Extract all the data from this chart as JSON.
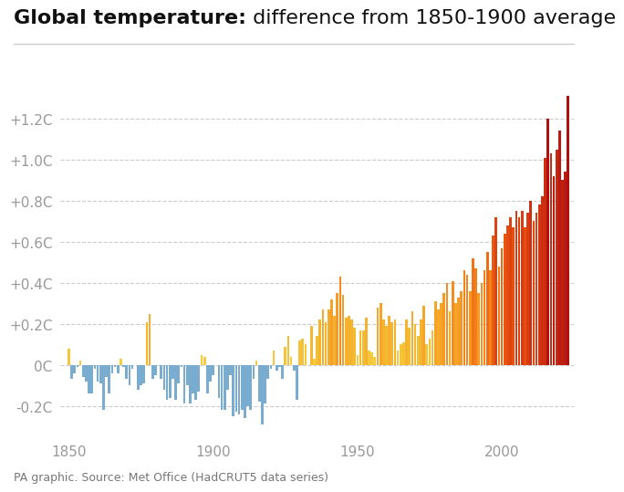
{
  "title_bold": "Global temperature:",
  "title_normal": " difference from 1850-1900 average",
  "source": "PA graphic. Source: Met Office (HadCRUT5 data series)",
  "years": [
    1850,
    1851,
    1852,
    1853,
    1854,
    1855,
    1856,
    1857,
    1858,
    1859,
    1860,
    1861,
    1862,
    1863,
    1864,
    1865,
    1866,
    1867,
    1868,
    1869,
    1870,
    1871,
    1872,
    1873,
    1874,
    1875,
    1876,
    1877,
    1878,
    1879,
    1880,
    1881,
    1882,
    1883,
    1884,
    1885,
    1886,
    1887,
    1888,
    1889,
    1890,
    1891,
    1892,
    1893,
    1894,
    1895,
    1896,
    1897,
    1898,
    1899,
    1900,
    1901,
    1902,
    1903,
    1904,
    1905,
    1906,
    1907,
    1908,
    1909,
    1910,
    1911,
    1912,
    1913,
    1914,
    1915,
    1916,
    1917,
    1918,
    1919,
    1920,
    1921,
    1922,
    1923,
    1924,
    1925,
    1926,
    1927,
    1928,
    1929,
    1930,
    1931,
    1932,
    1933,
    1934,
    1935,
    1936,
    1937,
    1938,
    1939,
    1940,
    1941,
    1942,
    1943,
    1944,
    1945,
    1946,
    1947,
    1948,
    1949,
    1950,
    1951,
    1952,
    1953,
    1954,
    1955,
    1956,
    1957,
    1958,
    1959,
    1960,
    1961,
    1962,
    1963,
    1964,
    1965,
    1966,
    1967,
    1968,
    1969,
    1970,
    1971,
    1972,
    1973,
    1974,
    1975,
    1976,
    1977,
    1978,
    1979,
    1980,
    1981,
    1982,
    1983,
    1984,
    1985,
    1986,
    1987,
    1988,
    1989,
    1990,
    1991,
    1992,
    1993,
    1994,
    1995,
    1996,
    1997,
    1998,
    1999,
    2000,
    2001,
    2002,
    2003,
    2004,
    2005,
    2006,
    2007,
    2008,
    2009,
    2010,
    2011,
    2012,
    2013,
    2014,
    2015,
    2016,
    2017,
    2018,
    2019,
    2020,
    2021,
    2022,
    2023
  ],
  "anomalies": [
    0.08,
    -0.07,
    -0.04,
    -0.01,
    0.02,
    -0.06,
    -0.08,
    -0.14,
    -0.14,
    -0.02,
    -0.08,
    -0.09,
    -0.22,
    -0.06,
    -0.14,
    -0.04,
    -0.01,
    -0.04,
    0.03,
    -0.01,
    -0.07,
    -0.1,
    -0.02,
    0.0,
    -0.12,
    -0.1,
    -0.09,
    0.21,
    0.25,
    -0.07,
    -0.05,
    0.0,
    -0.07,
    -0.12,
    -0.17,
    -0.16,
    -0.07,
    -0.17,
    -0.09,
    -0.01,
    -0.19,
    -0.1,
    -0.19,
    -0.14,
    -0.17,
    -0.13,
    0.05,
    0.04,
    -0.14,
    -0.08,
    -0.05,
    0.0,
    -0.16,
    -0.22,
    -0.22,
    -0.12,
    -0.05,
    -0.25,
    -0.23,
    -0.24,
    -0.22,
    -0.26,
    -0.2,
    -0.22,
    -0.07,
    0.02,
    -0.18,
    -0.29,
    -0.19,
    -0.07,
    -0.02,
    0.07,
    -0.03,
    -0.01,
    -0.07,
    0.09,
    0.14,
    0.04,
    -0.03,
    -0.17,
    0.12,
    0.13,
    0.1,
    0.0,
    0.19,
    0.03,
    0.14,
    0.22,
    0.27,
    0.21,
    0.27,
    0.32,
    0.24,
    0.35,
    0.43,
    0.34,
    0.23,
    0.24,
    0.22,
    0.18,
    0.05,
    0.17,
    0.17,
    0.23,
    0.07,
    0.06,
    0.04,
    0.28,
    0.3,
    0.22,
    0.19,
    0.24,
    0.21,
    0.22,
    0.07,
    0.1,
    0.11,
    0.22,
    0.18,
    0.26,
    0.2,
    0.14,
    0.22,
    0.29,
    0.1,
    0.13,
    0.17,
    0.31,
    0.27,
    0.3,
    0.35,
    0.4,
    0.26,
    0.41,
    0.3,
    0.33,
    0.36,
    0.46,
    0.44,
    0.36,
    0.52,
    0.47,
    0.35,
    0.4,
    0.46,
    0.55,
    0.46,
    0.63,
    0.72,
    0.48,
    0.57,
    0.64,
    0.68,
    0.72,
    0.67,
    0.75,
    0.72,
    0.75,
    0.67,
    0.74,
    0.8,
    0.7,
    0.74,
    0.78,
    0.82,
    1.01,
    1.2,
    1.03,
    0.92,
    1.05,
    1.14,
    0.9,
    0.94,
    1.31
  ],
  "ylim": [
    -0.35,
    1.45
  ],
  "yticks": [
    -0.2,
    0.0,
    0.2,
    0.4,
    0.6,
    0.8,
    1.0,
    1.2
  ],
  "ytick_labels": [
    "-0.2C",
    "0C",
    "+0.2C",
    "+0.4C",
    "+0.6C",
    "+0.8C",
    "+1.0C",
    "+1.2C"
  ],
  "background_color": "#ffffff",
  "grid_color": "#cccccc",
  "color_thresholds": [
    0.0,
    0.2,
    0.4,
    0.6,
    0.8,
    1.0
  ],
  "colors_positive": [
    "#f5d040",
    "#f5b830",
    "#f59020",
    "#f06010",
    "#d03010",
    "#b01010"
  ],
  "color_negative": "#7aaccf",
  "title_fontsize": 16,
  "axis_label_fontsize": 11,
  "source_fontsize": 9,
  "title_color": "#111111",
  "tick_color": "#999999",
  "source_color": "#777777"
}
